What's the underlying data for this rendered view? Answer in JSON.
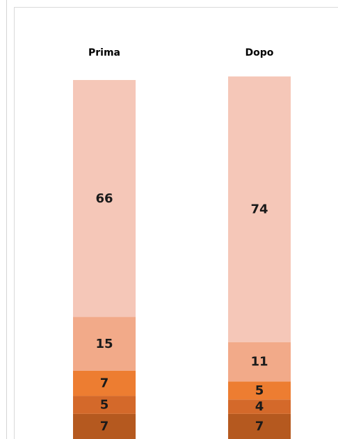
{
  "chart_data": {
    "type": "bar",
    "stacked": true,
    "title": "",
    "xlabel": "",
    "ylabel": "",
    "categories": [
      "Prima",
      "Dopo"
    ],
    "series": [
      {
        "values": [
          7,
          7
        ],
        "color": "#b5591f"
      },
      {
        "values": [
          5,
          4
        ],
        "color": "#d4692a"
      },
      {
        "values": [
          7,
          5
        ],
        "color": "#ed7d31"
      },
      {
        "values": [
          15,
          11
        ],
        "color": "#f2aa89"
      },
      {
        "values": [
          66,
          74
        ],
        "color": "#f5c7b8"
      }
    ],
    "ylim": [
      0,
      100
    ],
    "grid": false,
    "legend": "none",
    "category_labels_position": "top"
  }
}
